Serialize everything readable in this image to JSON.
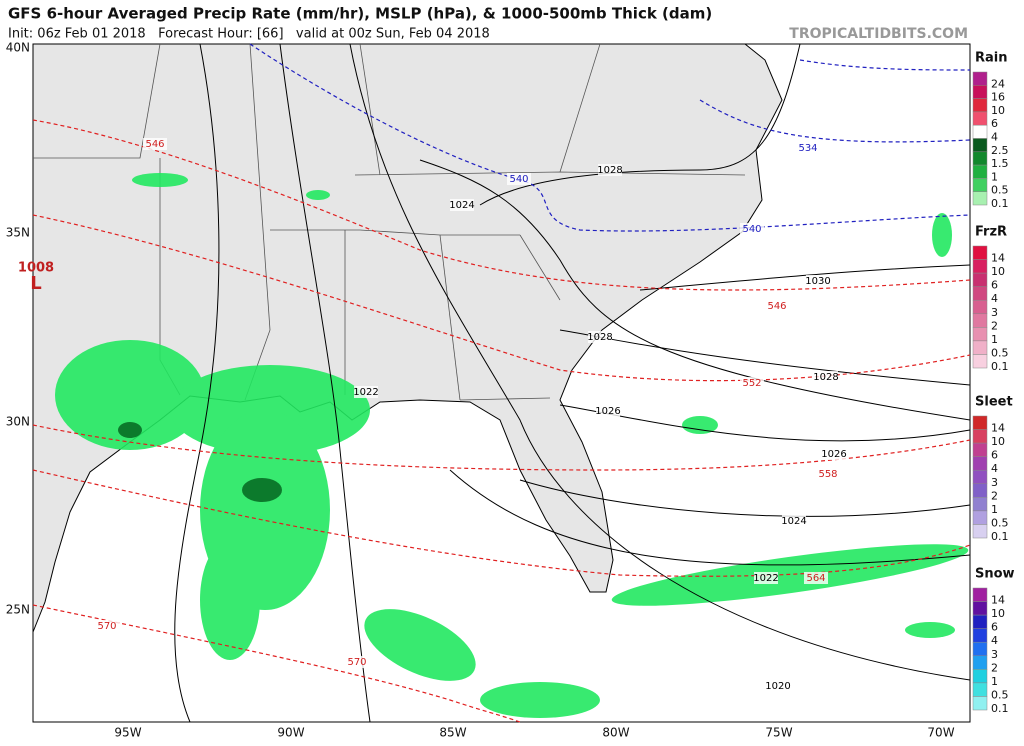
{
  "header": {
    "title": "GFS 6-hour Averaged Precip Rate (mm/hr), MSLP (hPa), & 1000-500mb Thick (dam)",
    "subtitle": "Init: 06z Feb 01 2018   Forecast Hour: [66]   valid at 00z Sun, Feb 04 2018",
    "watermark": "TROPICALTIDBITS.COM"
  },
  "axes": {
    "lat_labels": [
      "40N",
      "35N",
      "30N",
      "25N"
    ],
    "lon_labels": [
      "95W",
      "90W",
      "85W",
      "80W",
      "75W",
      "70W"
    ]
  },
  "low": {
    "pressure": "1008",
    "symbol": "L"
  },
  "isobar_labels": [
    "1028",
    "1024",
    "1030",
    "1028",
    "1028",
    "1022",
    "1026",
    "1026",
    "1024",
    "1022",
    "1020"
  ],
  "thickness_labels_warm": [
    "546",
    "546",
    "552",
    "558",
    "564",
    "570",
    "570"
  ],
  "thickness_labels_cold": [
    "540",
    "534",
    "540"
  ],
  "legend": [
    {
      "name": "Rain",
      "labels": [
        "24",
        "16",
        "10",
        "6",
        "4",
        "2.5",
        "1.5",
        "1",
        "0.5",
        "0.1"
      ],
      "colors": [
        "#b0208c",
        "#c8105a",
        "#e0283c",
        "#f0506e",
        "#ffffff",
        "#0a5a1e",
        "#12882c",
        "#20b040",
        "#40d060",
        "#a8f0b0"
      ]
    },
    {
      "name": "FrzR",
      "labels": [
        "14",
        "10",
        "6",
        "4",
        "3",
        "2",
        "1",
        "0.5",
        "0.1"
      ],
      "colors": [
        "#e01040",
        "#d82060",
        "#c83070",
        "#d04880",
        "#d86090",
        "#e078a0",
        "#e890b0",
        "#f0b0c8",
        "#f8d0e0"
      ]
    },
    {
      "name": "Sleet",
      "labels": [
        "14",
        "10",
        "6",
        "4",
        "3",
        "2",
        "1",
        "0.5",
        "0.1"
      ],
      "colors": [
        "#d02828",
        "#d84060",
        "#c04090",
        "#a040b0",
        "#9050c0",
        "#8060c8",
        "#9080d0",
        "#b0a0e0",
        "#d8d0f0"
      ]
    },
    {
      "name": "Snow",
      "labels": [
        "14",
        "10",
        "6",
        "4",
        "3",
        "2",
        "1",
        "0.5",
        "0.1"
      ],
      "colors": [
        "#a020a0",
        "#6010a0",
        "#2020c0",
        "#2040e0",
        "#2070f0",
        "#20a0f0",
        "#20d0e0",
        "#40e0e0",
        "#90f0f0"
      ]
    }
  ]
}
